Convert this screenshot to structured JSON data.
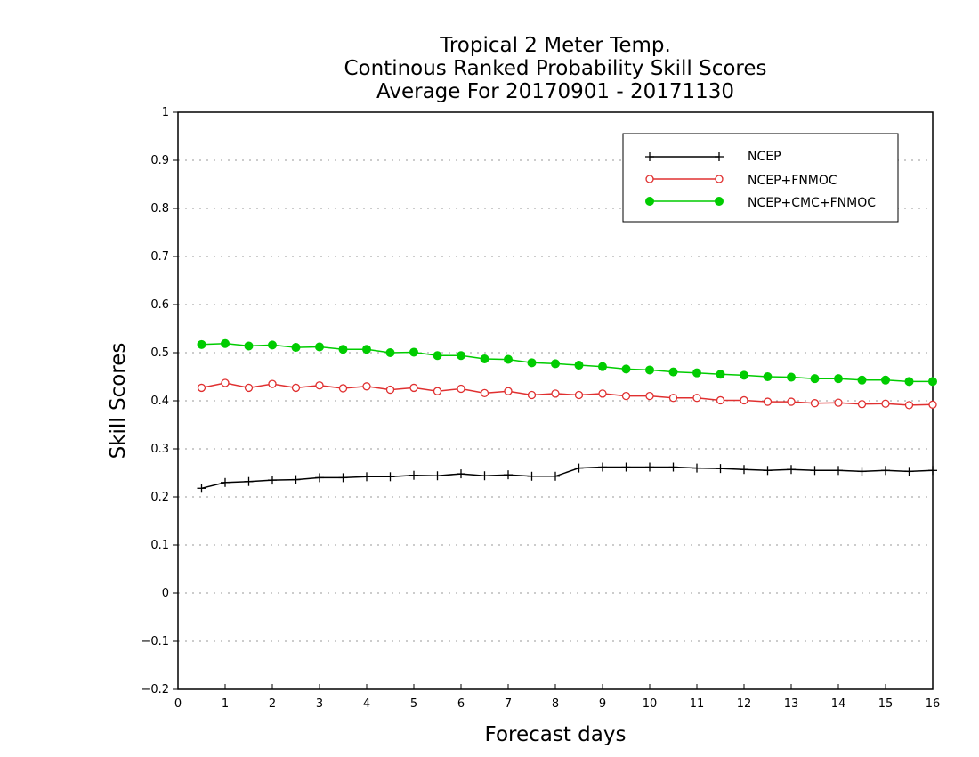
{
  "chart_data": {
    "type": "line",
    "title_lines": [
      "Tropical 2 Meter Temp.",
      "Continous Ranked Probability Skill Scores",
      "Average For 20170901 - 20171130"
    ],
    "xlabel": "Forecast days",
    "ylabel": "Skill Scores",
    "xlim": [
      0,
      16
    ],
    "ylim": [
      -0.2,
      1
    ],
    "x_ticks": [
      "0",
      "1",
      "2",
      "3",
      "4",
      "5",
      "6",
      "7",
      "8",
      "9",
      "10",
      "11",
      "12",
      "13",
      "14",
      "15",
      "16"
    ],
    "y_ticks": [
      "−0.2",
      "−0.1",
      "0",
      "0.1",
      "0.2",
      "0.3",
      "0.4",
      "0.5",
      "0.6",
      "0.7",
      "0.8",
      "0.9",
      "1"
    ],
    "grid": "horizontal dotted",
    "legend_position": "top-right",
    "x": [
      0.5,
      1,
      1.5,
      2,
      2.5,
      3,
      3.5,
      4,
      4.5,
      5,
      5.5,
      6,
      6.5,
      7,
      7.5,
      8,
      8.5,
      9,
      9.5,
      10,
      10.5,
      11,
      11.5,
      12,
      12.5,
      13,
      13.5,
      14,
      14.5,
      15,
      15.5,
      16
    ],
    "series": [
      {
        "name": "NCEP",
        "color": "#000000",
        "marker": "plus",
        "values": [
          0.218,
          0.23,
          0.232,
          0.235,
          0.236,
          0.24,
          0.24,
          0.242,
          0.242,
          0.245,
          0.244,
          0.248,
          0.244,
          0.246,
          0.243,
          0.243,
          0.26,
          0.262,
          0.262,
          0.262,
          0.262,
          0.26,
          0.259,
          0.257,
          0.255,
          0.257,
          0.255,
          0.255,
          0.253,
          0.255,
          0.253,
          0.255
        ]
      },
      {
        "name": "NCEP+FNMOC",
        "color": "#e03030",
        "marker": "open-circle",
        "values": [
          0.427,
          0.437,
          0.427,
          0.435,
          0.427,
          0.432,
          0.426,
          0.43,
          0.423,
          0.427,
          0.42,
          0.425,
          0.416,
          0.42,
          0.412,
          0.415,
          0.412,
          0.415,
          0.41,
          0.41,
          0.406,
          0.406,
          0.401,
          0.401,
          0.398,
          0.398,
          0.395,
          0.396,
          0.393,
          0.394,
          0.391,
          0.392
        ]
      },
      {
        "name": "NCEP+CMC+FNMOC",
        "color": "#00cc00",
        "marker": "filled-circle",
        "values": [
          0.517,
          0.519,
          0.514,
          0.516,
          0.511,
          0.512,
          0.507,
          0.507,
          0.5,
          0.501,
          0.494,
          0.494,
          0.487,
          0.486,
          0.479,
          0.477,
          0.474,
          0.471,
          0.466,
          0.464,
          0.46,
          0.458,
          0.455,
          0.453,
          0.45,
          0.449,
          0.446,
          0.446,
          0.443,
          0.443,
          0.44,
          0.44
        ]
      }
    ]
  }
}
